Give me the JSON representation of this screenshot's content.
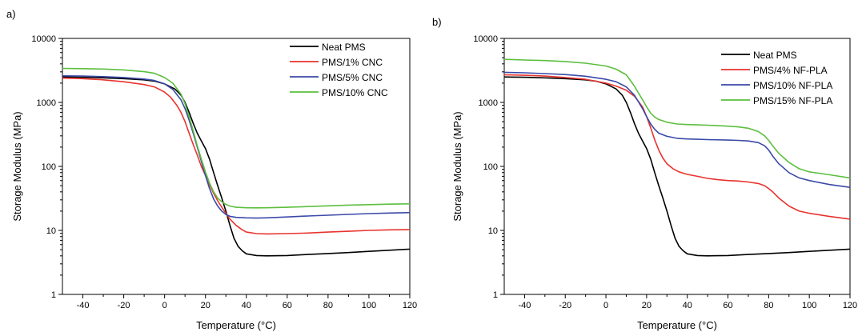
{
  "chart_data": [
    {
      "panel_label": "a)",
      "type": "line",
      "xlabel": "Temperature (°C)",
      "ylabel": "Storage Modulus (MPa)",
      "xlim": [
        -50,
        120
      ],
      "ylim": [
        1,
        10000
      ],
      "yscale": "log",
      "xticks": [
        -40,
        -20,
        0,
        20,
        40,
        60,
        80,
        100,
        120
      ],
      "yticks": [
        1,
        10,
        100,
        1000,
        10000
      ],
      "legend_position": "top-right",
      "grid": false,
      "series": [
        {
          "name": "Neat PMS",
          "color": "#000000",
          "x": [
            -50,
            -40,
            -30,
            -20,
            -10,
            -5,
            0,
            5,
            8,
            10,
            12,
            14,
            16,
            18,
            20,
            22,
            24,
            26,
            28,
            30,
            32,
            34,
            36,
            38,
            40,
            45,
            50,
            60,
            70,
            80,
            90,
            100,
            110,
            120
          ],
          "y": [
            2500,
            2470,
            2420,
            2350,
            2250,
            2150,
            1950,
            1620,
            1300,
            1000,
            700,
            470,
            330,
            250,
            190,
            130,
            80,
            50,
            32,
            20,
            12,
            7.5,
            5.6,
            4.8,
            4.3,
            4.05,
            4.0,
            4.05,
            4.2,
            4.35,
            4.5,
            4.7,
            4.9,
            5.1
          ]
        },
        {
          "name": "PMS/1% CNC",
          "color": "#e8332e",
          "x": [
            -50,
            -40,
            -30,
            -20,
            -10,
            -5,
            0,
            3,
            6,
            8,
            10,
            12,
            14,
            16,
            18,
            20,
            22,
            24,
            26,
            28,
            30,
            32,
            35,
            38,
            40,
            45,
            50,
            60,
            70,
            80,
            90,
            100,
            110,
            120
          ],
          "y": [
            2400,
            2350,
            2250,
            2100,
            1900,
            1750,
            1450,
            1200,
            900,
            700,
            500,
            330,
            220,
            150,
            100,
            72,
            52,
            38,
            29,
            23,
            18.5,
            15,
            12,
            10.2,
            9.4,
            8.9,
            8.8,
            8.9,
            9.1,
            9.4,
            9.7,
            10.0,
            10.2,
            10.3
          ]
        },
        {
          "name": "PMS/5% CNC",
          "color": "#3a4aa8",
          "x": [
            -50,
            -40,
            -30,
            -20,
            -10,
            -5,
            0,
            4,
            8,
            10,
            12,
            14,
            16,
            18,
            20,
            22,
            24,
            26,
            28,
            30,
            32,
            35,
            40,
            45,
            50,
            60,
            70,
            80,
            90,
            100,
            110,
            120
          ],
          "y": [
            2600,
            2580,
            2530,
            2450,
            2320,
            2200,
            1950,
            1600,
            1100,
            800,
            530,
            330,
            200,
            120,
            72,
            45,
            31,
            24,
            20,
            17.8,
            16.6,
            16,
            15.7,
            15.6,
            15.7,
            16.2,
            16.8,
            17.3,
            17.8,
            18.3,
            18.7,
            19.0
          ]
        },
        {
          "name": "PMS/10% CNC",
          "color": "#5cbf3e",
          "x": [
            -50,
            -40,
            -30,
            -20,
            -10,
            -5,
            0,
            4,
            8,
            10,
            12,
            14,
            16,
            18,
            20,
            22,
            24,
            26,
            28,
            30,
            32,
            35,
            40,
            45,
            50,
            60,
            70,
            80,
            90,
            100,
            110,
            120
          ],
          "y": [
            3400,
            3370,
            3320,
            3220,
            3020,
            2850,
            2450,
            2000,
            1350,
            950,
            600,
            360,
            210,
            130,
            82,
            55,
            40,
            32,
            28,
            25.5,
            24,
            23,
            22.6,
            22.5,
            22.6,
            23,
            23.6,
            24.2,
            24.8,
            25.3,
            25.7,
            26.0
          ]
        }
      ]
    },
    {
      "panel_label": "b)",
      "type": "line",
      "xlabel": "Temperature (°C)",
      "ylabel": "Storage Modulus (MPa)",
      "xlim": [
        -50,
        120
      ],
      "ylim": [
        1,
        10000
      ],
      "yscale": "log",
      "xticks": [
        -40,
        -20,
        0,
        20,
        40,
        60,
        80,
        100,
        120
      ],
      "yticks": [
        1,
        10,
        100,
        1000,
        10000
      ],
      "legend_position": "top-right",
      "grid": false,
      "series": [
        {
          "name": "Neat PMS",
          "color": "#000000",
          "x": [
            -50,
            -40,
            -30,
            -20,
            -10,
            -5,
            0,
            5,
            8,
            10,
            12,
            14,
            16,
            18,
            20,
            22,
            24,
            26,
            28,
            30,
            32,
            34,
            36,
            38,
            40,
            45,
            50,
            60,
            70,
            80,
            90,
            100,
            110,
            120
          ],
          "y": [
            2500,
            2470,
            2420,
            2350,
            2250,
            2150,
            1950,
            1620,
            1300,
            1000,
            700,
            470,
            330,
            250,
            190,
            130,
            80,
            50,
            32,
            20,
            12,
            7.5,
            5.6,
            4.8,
            4.3,
            4.05,
            4.0,
            4.05,
            4.2,
            4.35,
            4.5,
            4.7,
            4.9,
            5.1
          ]
        },
        {
          "name": "PMS/4% NF-PLA",
          "color": "#e8332e",
          "x": [
            -50,
            -40,
            -30,
            -20,
            -10,
            0,
            5,
            10,
            14,
            18,
            20,
            22,
            24,
            26,
            28,
            30,
            33,
            36,
            40,
            45,
            50,
            55,
            60,
            65,
            70,
            75,
            78,
            80,
            82,
            85,
            90,
            95,
            100,
            110,
            120
          ],
          "y": [
            2700,
            2650,
            2580,
            2450,
            2300,
            2000,
            1800,
            1550,
            1250,
            850,
            600,
            400,
            260,
            180,
            135,
            110,
            92,
            82,
            75,
            70,
            65,
            62,
            60,
            59,
            57,
            54,
            50,
            45,
            40,
            32,
            24,
            20,
            18.5,
            16.5,
            15.0
          ]
        },
        {
          "name": "PMS/10% NF-PLA",
          "color": "#3a4aa8",
          "x": [
            -50,
            -40,
            -30,
            -20,
            -10,
            0,
            5,
            10,
            14,
            18,
            20,
            22,
            24,
            26,
            30,
            35,
            40,
            45,
            50,
            60,
            65,
            70,
            75,
            78,
            80,
            82,
            85,
            90,
            95,
            100,
            110,
            120
          ],
          "y": [
            2950,
            2900,
            2820,
            2720,
            2560,
            2300,
            2100,
            1750,
            1300,
            800,
            600,
            460,
            380,
            330,
            295,
            275,
            268,
            265,
            262,
            258,
            255,
            250,
            235,
            210,
            180,
            145,
            110,
            80,
            66,
            60,
            52,
            47
          ]
        },
        {
          "name": "PMS/15% NF-PLA",
          "color": "#5cbf3e",
          "x": [
            -50,
            -40,
            -30,
            -20,
            -10,
            0,
            5,
            10,
            14,
            18,
            20,
            22,
            24,
            26,
            30,
            35,
            40,
            45,
            50,
            60,
            65,
            70,
            75,
            78,
            80,
            82,
            85,
            90,
            95,
            100,
            110,
            120
          ],
          "y": [
            4700,
            4600,
            4500,
            4350,
            4100,
            3700,
            3300,
            2700,
            1800,
            1100,
            850,
            680,
            590,
            540,
            490,
            460,
            450,
            445,
            440,
            425,
            415,
            395,
            350,
            300,
            255,
            210,
            160,
            115,
            92,
            82,
            74,
            66
          ]
        }
      ]
    }
  ]
}
